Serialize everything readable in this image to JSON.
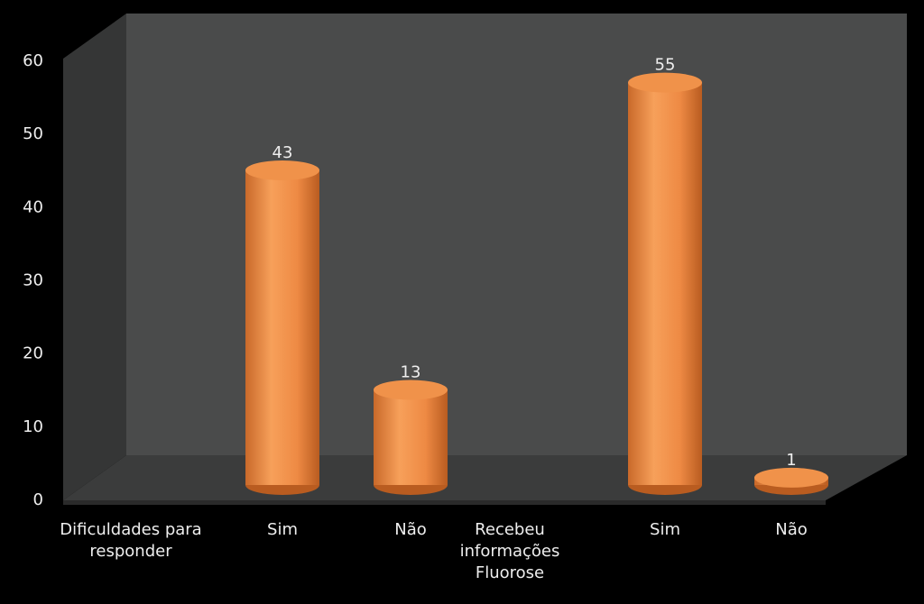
{
  "chart_data": {
    "type": "bar3d",
    "categories": [
      "Dificuldades para responder",
      "Sim",
      "Não",
      "Recebeu informações Fluorose",
      "Sim",
      "Não"
    ],
    "values": [
      null,
      43,
      13,
      null,
      55,
      1
    ],
    "color": "#f0924a",
    "ylim": [
      0,
      60
    ],
    "yticks": [
      0,
      10,
      20,
      30,
      40,
      50,
      60
    ],
    "grid": false
  }
}
